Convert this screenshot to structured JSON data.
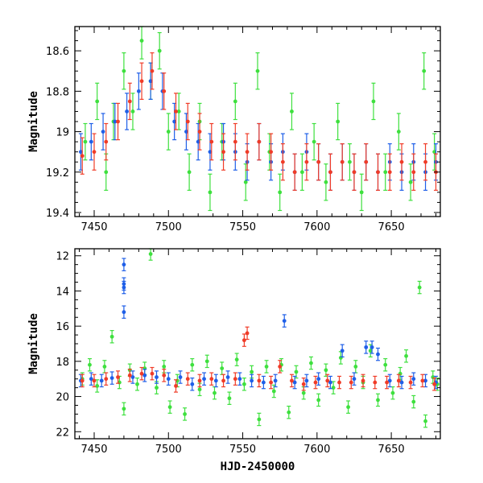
{
  "colors": {
    "blue": "#1f5fe8",
    "red": "#f03c28",
    "green": "#3ee03e",
    "axis": "#000000"
  },
  "chart_data": [
    {
      "type": "scatter",
      "panel": "top",
      "title": "",
      "xlabel": "",
      "ylabel": "Magnitude",
      "xlim": [
        7437,
        7683
      ],
      "ylim": [
        19.42,
        18.48
      ],
      "y_inverted": true,
      "x_ticks": [
        "7450",
        "7500",
        "7550",
        "7600",
        "7650"
      ],
      "y_ticks": [
        "18.6",
        "18.8",
        "19",
        "19.2",
        "19.4"
      ],
      "error_bars": true,
      "series": [
        {
          "color_key": "green",
          "points": [
            [
              7444,
              19.05
            ],
            [
              7452,
              18.85
            ],
            [
              7458,
              19.2
            ],
            [
              7463,
              18.95
            ],
            [
              7470,
              18.7
            ],
            [
              7476,
              18.9
            ],
            [
              7482,
              18.55
            ],
            [
              7488,
              18.75
            ],
            [
              7494,
              18.6
            ],
            [
              7500,
              19.0
            ],
            [
              7507,
              18.9
            ],
            [
              7514,
              19.2
            ],
            [
              7521,
              18.95
            ],
            [
              7528,
              19.3
            ],
            [
              7536,
              19.05
            ],
            [
              7545,
              18.85
            ],
            [
              7552,
              19.25
            ],
            [
              7560,
              18.7
            ],
            [
              7568,
              19.1
            ],
            [
              7575,
              19.3
            ],
            [
              7583,
              18.9
            ],
            [
              7590,
              19.2
            ],
            [
              7598,
              19.05
            ],
            [
              7606,
              19.25
            ],
            [
              7614,
              18.95
            ],
            [
              7622,
              19.15
            ],
            [
              7630,
              19.3
            ],
            [
              7638,
              18.85
            ],
            [
              7646,
              19.2
            ],
            [
              7655,
              19.0
            ],
            [
              7663,
              19.25
            ],
            [
              7672,
              18.7
            ],
            [
              7679,
              19.1
            ]
          ]
        },
        {
          "color_key": "blue",
          "points": [
            [
              7441,
              19.1
            ],
            [
              7448,
              19.05
            ],
            [
              7456,
              19.0
            ],
            [
              7464,
              18.95
            ],
            [
              7472,
              18.9
            ],
            [
              7480,
              18.8
            ],
            [
              7488,
              18.75
            ],
            [
              7496,
              18.8
            ],
            [
              7504,
              18.95
            ],
            [
              7512,
              19.0
            ],
            [
              7520,
              19.05
            ],
            [
              7528,
              19.1
            ],
            [
              7537,
              19.05
            ],
            [
              7545,
              19.1
            ],
            [
              7553,
              19.15
            ],
            [
              7561,
              19.05
            ],
            [
              7569,
              19.15
            ],
            [
              7577,
              19.1
            ],
            [
              7585,
              19.2
            ],
            [
              7593,
              19.1
            ],
            [
              7601,
              19.15
            ],
            [
              7609,
              19.2
            ],
            [
              7617,
              19.15
            ],
            [
              7625,
              19.2
            ],
            [
              7633,
              19.15
            ],
            [
              7641,
              19.2
            ],
            [
              7649,
              19.15
            ],
            [
              7657,
              19.2
            ],
            [
              7665,
              19.15
            ],
            [
              7673,
              19.2
            ],
            [
              7680,
              19.15
            ]
          ]
        },
        {
          "color_key": "red",
          "points": [
            [
              7442,
              19.12
            ],
            [
              7450,
              19.1
            ],
            [
              7458,
              19.05
            ],
            [
              7466,
              18.95
            ],
            [
              7474,
              18.85
            ],
            [
              7482,
              18.75
            ],
            [
              7489,
              18.7
            ],
            [
              7497,
              18.8
            ],
            [
              7505,
              18.9
            ],
            [
              7513,
              18.95
            ],
            [
              7521,
              19.0
            ],
            [
              7529,
              19.05
            ],
            [
              7537,
              19.1
            ],
            [
              7545,
              19.05
            ],
            [
              7553,
              19.1
            ],
            [
              7561,
              19.05
            ],
            [
              7569,
              19.1
            ],
            [
              7577,
              19.15
            ],
            [
              7585,
              19.2
            ],
            [
              7593,
              19.15
            ],
            [
              7601,
              19.15
            ],
            [
              7609,
              19.2
            ],
            [
              7617,
              19.15
            ],
            [
              7625,
              19.2
            ],
            [
              7633,
              19.15
            ],
            [
              7641,
              19.2
            ],
            [
              7649,
              19.2
            ],
            [
              7657,
              19.15
            ],
            [
              7665,
              19.2
            ],
            [
              7673,
              19.15
            ],
            [
              7680,
              19.2
            ]
          ]
        }
      ]
    },
    {
      "type": "scatter",
      "panel": "bottom",
      "title": "",
      "xlabel": "HJD-2450000",
      "ylabel": "Magnitude",
      "xlim": [
        7437,
        7683
      ],
      "ylim": [
        22.4,
        11.6
      ],
      "y_inverted": true,
      "x_ticks": [
        "7450",
        "7500",
        "7550",
        "7600",
        "7650"
      ],
      "y_ticks": [
        "12",
        "14",
        "16",
        "18",
        "20",
        "22"
      ],
      "error_bars": true,
      "series": [
        {
          "color_key": "green",
          "points": [
            [
              7442,
              19.0
            ],
            [
              7447,
              18.2
            ],
            [
              7452,
              19.4
            ],
            [
              7457,
              18.3
            ],
            [
              7462,
              16.6
            ],
            [
              7467,
              19.2
            ],
            [
              7470,
              20.7
            ],
            [
              7474,
              18.5
            ],
            [
              7479,
              19.3
            ],
            [
              7484,
              18.4
            ],
            [
              7488,
              11.9
            ],
            [
              7492,
              19.5
            ],
            [
              7497,
              18.3
            ],
            [
              7501,
              20.6
            ],
            [
              7506,
              19.1
            ],
            [
              7511,
              21.0
            ],
            [
              7516,
              18.2
            ],
            [
              7521,
              19.6
            ],
            [
              7526,
              18.0
            ],
            [
              7531,
              19.8
            ],
            [
              7536,
              18.4
            ],
            [
              7541,
              20.1
            ],
            [
              7546,
              17.9
            ],
            [
              7551,
              19.3
            ],
            [
              7556,
              18.6
            ],
            [
              7561,
              21.3
            ],
            [
              7566,
              18.3
            ],
            [
              7571,
              19.7
            ],
            [
              7576,
              18.2
            ],
            [
              7581,
              20.9
            ],
            [
              7586,
              18.6
            ],
            [
              7591,
              19.8
            ],
            [
              7596,
              18.1
            ],
            [
              7601,
              20.2
            ],
            [
              7606,
              18.5
            ],
            [
              7611,
              19.5
            ],
            [
              7616,
              17.8
            ],
            [
              7621,
              20.6
            ],
            [
              7626,
              18.3
            ],
            [
              7631,
              19.2
            ],
            [
              7636,
              17.4
            ],
            [
              7641,
              20.2
            ],
            [
              7646,
              18.2
            ],
            [
              7651,
              19.8
            ],
            [
              7656,
              18.7
            ],
            [
              7660,
              17.7
            ],
            [
              7665,
              20.3
            ],
            [
              7669,
              13.8
            ],
            [
              7673,
              21.4
            ],
            [
              7678,
              18.9
            ],
            [
              7681,
              19.3
            ]
          ]
        },
        {
          "color_key": "blue",
          "points": [
            [
              7441,
              19.1
            ],
            [
              7448,
              19.0
            ],
            [
              7455,
              19.1
            ],
            [
              7462,
              18.95
            ],
            [
              7470,
              12.5
            ],
            [
              7470,
              13.6
            ],
            [
              7470,
              13.8
            ],
            [
              7470,
              15.2
            ],
            [
              7476,
              18.9
            ],
            [
              7484,
              18.8
            ],
            [
              7492,
              18.9
            ],
            [
              7500,
              19.0
            ],
            [
              7508,
              18.9
            ],
            [
              7516,
              19.3
            ],
            [
              7524,
              19.0
            ],
            [
              7532,
              19.1
            ],
            [
              7540,
              18.9
            ],
            [
              7548,
              19.0
            ],
            [
              7556,
              19.1
            ],
            [
              7564,
              19.2
            ],
            [
              7572,
              19.1
            ],
            [
              7578,
              15.7
            ],
            [
              7585,
              19.2
            ],
            [
              7593,
              19.1
            ],
            [
              7601,
              19.0
            ],
            [
              7609,
              19.2
            ],
            [
              7617,
              17.4
            ],
            [
              7625,
              19.0
            ],
            [
              7633,
              17.2
            ],
            [
              7637,
              17.2
            ],
            [
              7641,
              17.6
            ],
            [
              7649,
              19.1
            ],
            [
              7657,
              19.2
            ],
            [
              7665,
              19.0
            ],
            [
              7673,
              19.1
            ],
            [
              7680,
              19.2
            ]
          ]
        },
        {
          "color_key": "red",
          "points": [
            [
              7442,
              19.1
            ],
            [
              7450,
              19.1
            ],
            [
              7458,
              19.0
            ],
            [
              7466,
              18.9
            ],
            [
              7474,
              18.8
            ],
            [
              7482,
              18.7
            ],
            [
              7489,
              18.7
            ],
            [
              7497,
              18.8
            ],
            [
              7505,
              19.4
            ],
            [
              7513,
              19.0
            ],
            [
              7521,
              19.1
            ],
            [
              7529,
              19.0
            ],
            [
              7537,
              19.1
            ],
            [
              7545,
              19.0
            ],
            [
              7551,
              16.8
            ],
            [
              7553,
              16.4
            ],
            [
              7561,
              19.1
            ],
            [
              7569,
              19.2
            ],
            [
              7575,
              18.3
            ],
            [
              7583,
              19.1
            ],
            [
              7591,
              19.3
            ],
            [
              7599,
              19.2
            ],
            [
              7607,
              19.1
            ],
            [
              7615,
              19.2
            ],
            [
              7623,
              19.2
            ],
            [
              7631,
              19.1
            ],
            [
              7639,
              19.2
            ],
            [
              7647,
              19.2
            ],
            [
              7655,
              19.1
            ],
            [
              7663,
              19.2
            ],
            [
              7671,
              19.1
            ],
            [
              7679,
              19.3
            ]
          ]
        }
      ]
    }
  ]
}
